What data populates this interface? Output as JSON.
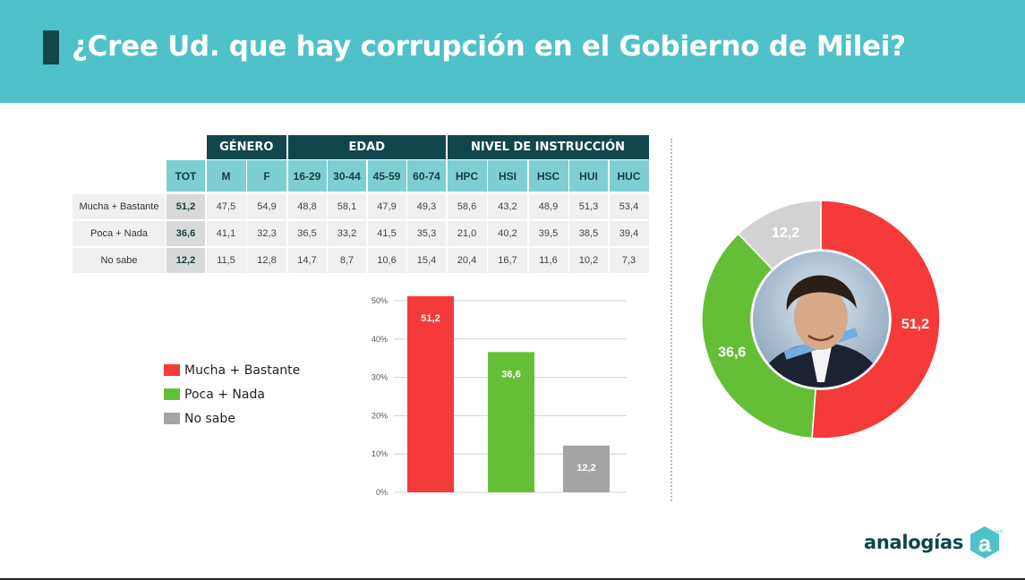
{
  "title": "¿Cree Ud. que hay corrupción en el Gobierno de Milei?",
  "table": {
    "groups": [
      "GÉNERO",
      "EDAD",
      "NIVEL DE INSTRUCCIÓN"
    ],
    "columns": [
      "TOT",
      "M",
      "F",
      "16-29",
      "30-44",
      "45-59",
      "60-74",
      "HPC",
      "HSI",
      "HSC",
      "HUI",
      "HUC"
    ],
    "rows": [
      {
        "label": "Mucha + Bastante",
        "values": [
          "51,2",
          "47,5",
          "54,9",
          "48,8",
          "58,1",
          "47,9",
          "49,3",
          "58,6",
          "43,2",
          "48,9",
          "51,3",
          "53,4"
        ]
      },
      {
        "label": "Poca + Nada",
        "values": [
          "36,6",
          "41,1",
          "32,3",
          "36,5",
          "33,2",
          "41,5",
          "35,3",
          "21,0",
          "40,2",
          "39,5",
          "38,5",
          "39,4"
        ]
      },
      {
        "label": "No sabe",
        "values": [
          "12,2",
          "11,5",
          "12,8",
          "14,7",
          "8,7",
          "10,6",
          "15,4",
          "20,4",
          "16,7",
          "11,6",
          "10,2",
          "7,3"
        ]
      }
    ]
  },
  "legend": [
    {
      "label": "Mucha + Bastante",
      "color": "#f43b3a"
    },
    {
      "label": "Poca + Nada",
      "color": "#65bf36"
    },
    {
      "label": "No sabe",
      "color": "#a4a4a4"
    }
  ],
  "chart_data": [
    {
      "type": "bar",
      "categories": [
        "Mucha + Bastante",
        "Poca + Nada",
        "No sabe"
      ],
      "values": [
        51.2,
        36.6,
        12.2
      ],
      "value_labels": [
        "51,2",
        "36,6",
        "12,2"
      ],
      "colors": [
        "#f43b3a",
        "#65bf36",
        "#a4a4a4"
      ],
      "ylim": [
        0,
        50
      ],
      "yticks": [
        "0%",
        "10%",
        "20%",
        "30%",
        "40%",
        "50%"
      ],
      "grid": true
    },
    {
      "type": "pie",
      "donut": true,
      "categories": [
        "Mucha + Bastante",
        "Poca + Nada",
        "No sabe"
      ],
      "values": [
        51.2,
        36.6,
        12.2
      ],
      "value_labels": [
        "51,2",
        "36,6",
        "12,2"
      ],
      "colors": [
        "#f43b3a",
        "#65bf36",
        "#d3d3d3"
      ]
    }
  ],
  "logo": {
    "text": "analogías"
  }
}
